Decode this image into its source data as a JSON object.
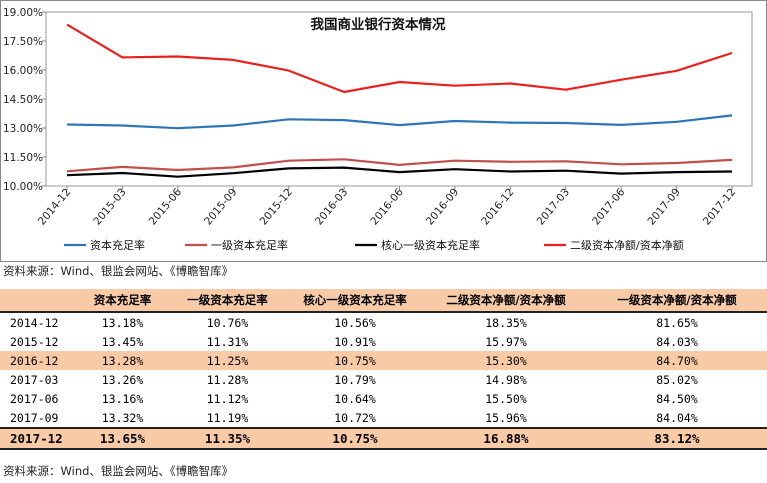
{
  "chart_data": {
    "type": "line",
    "title": "我国商业银行资本情况",
    "categories": [
      "2014-12",
      "2015-03",
      "2015-06",
      "2015-09",
      "2015-12",
      "2016-03",
      "2016-06",
      "2016-09",
      "2016-12",
      "2017-03",
      "2017-06",
      "2017-09",
      "2017-12"
    ],
    "ylim": [
      10.0,
      19.0
    ],
    "yticks": [
      "10.00%",
      "11.50%",
      "13.00%",
      "14.50%",
      "16.00%",
      "17.50%",
      "19.00%"
    ],
    "ytick_values": [
      10.0,
      11.5,
      13.0,
      14.5,
      16.0,
      17.5,
      19.0
    ],
    "grid": false,
    "legend_position": "bottom",
    "series": [
      {
        "name": "资本充足率",
        "color": "#2e75b6",
        "values": [
          13.18,
          13.13,
          12.99,
          13.13,
          13.45,
          13.41,
          13.15,
          13.36,
          13.28,
          13.26,
          13.16,
          13.32,
          13.65
        ]
      },
      {
        "name": "一级资本充足率",
        "color": "#c0504d",
        "values": [
          10.76,
          10.99,
          10.83,
          10.96,
          11.31,
          11.38,
          11.09,
          11.31,
          11.25,
          11.28,
          11.12,
          11.19,
          11.35
        ]
      },
      {
        "name": "核心一级资本充足率",
        "color": "#000000",
        "values": [
          10.56,
          10.67,
          10.48,
          10.66,
          10.91,
          10.95,
          10.72,
          10.87,
          10.75,
          10.79,
          10.64,
          10.72,
          10.75
        ]
      },
      {
        "name": "二级资本净额/资本净额",
        "color": "#e8211f",
        "values": [
          18.35,
          16.65,
          16.7,
          16.52,
          15.97,
          14.86,
          15.38,
          15.19,
          15.3,
          14.98,
          15.5,
          15.96,
          16.88
        ]
      }
    ]
  },
  "source_text": "资料来源：Wind、银监会网站、《博瞻智库》",
  "table": {
    "headers": [
      "",
      "资本充足率",
      "一级资本充足率",
      "核心一级资本充足率",
      "二级资本净额/资本净额",
      "一级资本净额/资本净额"
    ],
    "rows": [
      [
        "2014-12",
        "13.18%",
        "10.76%",
        "10.56%",
        "18.35%",
        "81.65%"
      ],
      [
        "2015-12",
        "13.45%",
        "11.31%",
        "10.91%",
        "15.97%",
        "84.03%"
      ],
      [
        "2016-12",
        "13.28%",
        "11.25%",
        "10.75%",
        "15.30%",
        "84.70%"
      ],
      [
        "2017-03",
        "13.26%",
        "11.28%",
        "10.79%",
        "14.98%",
        "85.02%"
      ],
      [
        "2017-06",
        "13.16%",
        "11.12%",
        "10.64%",
        "15.50%",
        "84.50%"
      ],
      [
        "2017-09",
        "13.32%",
        "11.19%",
        "10.72%",
        "15.96%",
        "84.04%"
      ],
      [
        "2017-12",
        "13.65%",
        "11.35%",
        "10.75%",
        "16.88%",
        "83.12%"
      ]
    ],
    "highlight_color": "#f8cba6"
  }
}
